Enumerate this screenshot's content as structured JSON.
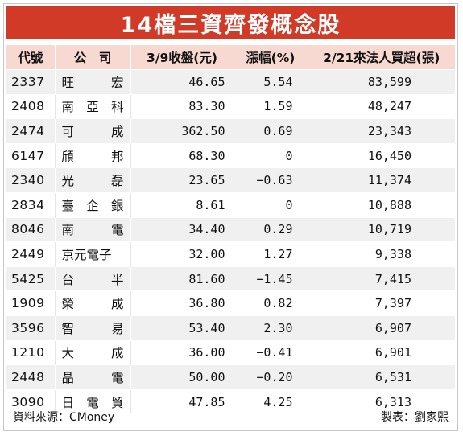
{
  "title": "14檔三資齊發概念股",
  "headers": {
    "code": "代號",
    "company": "公　司",
    "price": "3/9收盤(元)",
    "change": "漲幅(%)",
    "buy": "2/21來法人買超(張)"
  },
  "rows": [
    {
      "code": "2337",
      "company": [
        "旺",
        "宏"
      ],
      "price": "46.65",
      "change": "5.54",
      "buy": "83,599"
    },
    {
      "code": "2408",
      "company": [
        "南",
        "亞",
        "科"
      ],
      "price": "83.30",
      "change": "1.59",
      "buy": "48,247"
    },
    {
      "code": "2474",
      "company": [
        "可",
        "成"
      ],
      "price": "362.50",
      "change": "0.69",
      "buy": "23,343"
    },
    {
      "code": "6147",
      "company": [
        "頎",
        "邦"
      ],
      "price": "68.30",
      "change": "0",
      "buy": "16,450"
    },
    {
      "code": "2340",
      "company": [
        "光",
        "磊"
      ],
      "price": "23.65",
      "change": "−0.63",
      "buy": "11,374"
    },
    {
      "code": "2834",
      "company": [
        "臺",
        "企",
        "銀"
      ],
      "price": "8.61",
      "change": "0",
      "buy": "10,888"
    },
    {
      "code": "8046",
      "company": [
        "南",
        "電"
      ],
      "price": "34.40",
      "change": "0.29",
      "buy": "10,719"
    },
    {
      "code": "2449",
      "company": [
        "京元電子"
      ],
      "price": "32.00",
      "change": "1.27",
      "buy": "9,338"
    },
    {
      "code": "5425",
      "company": [
        "台",
        "半"
      ],
      "price": "81.60",
      "change": "−1.45",
      "buy": "7,415"
    },
    {
      "code": "1909",
      "company": [
        "榮",
        "成"
      ],
      "price": "36.80",
      "change": "0.82",
      "buy": "7,397"
    },
    {
      "code": "3596",
      "company": [
        "智",
        "易"
      ],
      "price": "53.40",
      "change": "2.30",
      "buy": "6,907"
    },
    {
      "code": "1210",
      "company": [
        "大",
        "成"
      ],
      "price": "36.00",
      "change": "−0.41",
      "buy": "6,901"
    },
    {
      "code": "2448",
      "company": [
        "晶",
        "電"
      ],
      "price": "50.00",
      "change": "−0.20",
      "buy": "6,531"
    },
    {
      "code": "3090",
      "company": [
        "日",
        "電",
        "貿"
      ],
      "price": "47.85",
      "change": "4.25",
      "buy": "6,313"
    }
  ],
  "footer": {
    "source": "資料來源：CMoney",
    "maker": "製表：劉家熙"
  },
  "colors": {
    "title_bg": "#d23a28",
    "header_bg": "#f7d9d2",
    "stripe_bg": "#f0f0f0"
  }
}
